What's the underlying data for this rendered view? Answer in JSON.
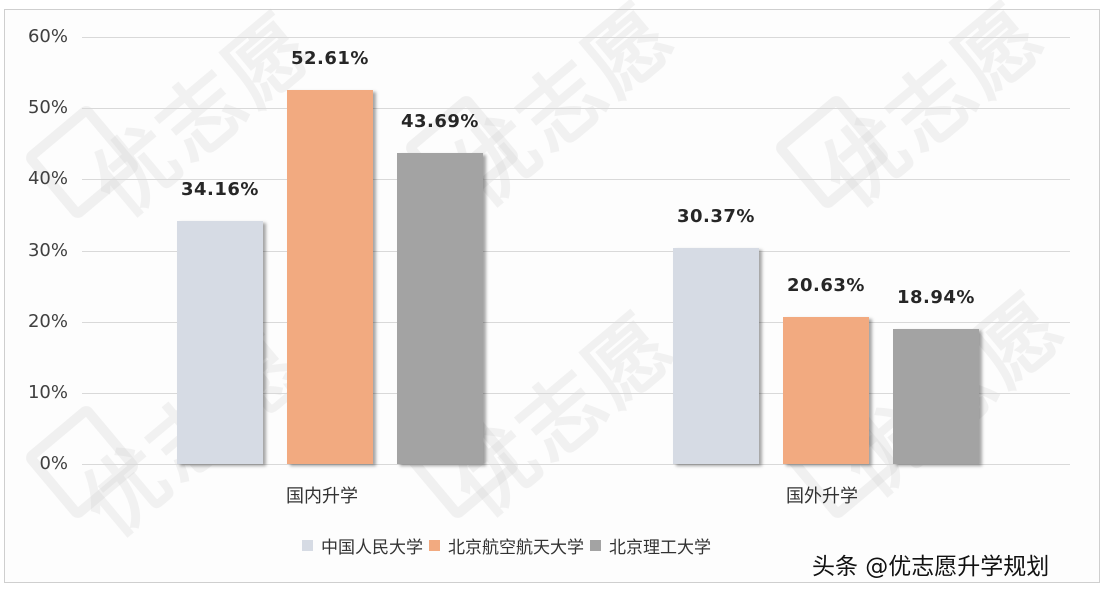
{
  "chart_data": {
    "type": "bar",
    "title": "",
    "xlabel": "",
    "ylabel": "",
    "ylim": [
      0,
      60
    ],
    "y_ticks": [
      "0%",
      "10%",
      "20%",
      "30%",
      "40%",
      "50%",
      "60%"
    ],
    "grid": true,
    "legend_position": "bottom",
    "categories": [
      "国内升学",
      "国外升学"
    ],
    "series": [
      {
        "name": "中国人民大学",
        "color": "#d6dbe4",
        "values": [
          34.16,
          30.37
        ],
        "labels": [
          "34.16%",
          "30.37%"
        ]
      },
      {
        "name": "北京航空航天大学",
        "color": "#f2aa80",
        "values": [
          52.61,
          20.63
        ],
        "labels": [
          "52.61%",
          "20.63%"
        ]
      },
      {
        "name": "北京理工大学",
        "color": "#a3a3a3",
        "values": [
          43.69,
          18.94
        ],
        "labels": [
          "43.69%",
          "18.94%"
        ]
      }
    ]
  },
  "watermark": {
    "text": "优志愿"
  },
  "credit": {
    "text": "头条 @优志愿升学规划"
  }
}
